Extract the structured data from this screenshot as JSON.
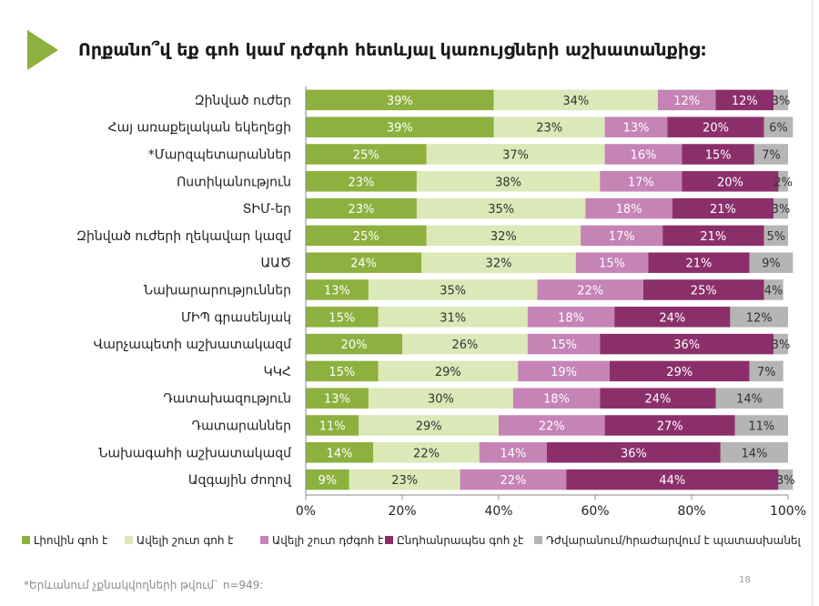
{
  "title": "Որքանո՞վ եք գոհ կամ դժգոհ հետևյալ կառույցների աշխատանքից:",
  "footnote": "*Երևանում չքնակվողների թվում` n=949:",
  "page_number": "18",
  "colors": [
    "#8db03f",
    "#dbe8b7",
    "#c583b6",
    "#8b2f6a",
    "#b5b5b5"
  ],
  "chart_data": {
    "type": "bar",
    "orientation": "horizontal",
    "stacked": true,
    "categories": [
      "Զինված ուժեր",
      "Հայ առաքելական եկեղեցի",
      "*Մարզպետարաններ",
      "Ոստիկանություն",
      "ՏԻՄ-եր",
      "Զինված ուժերի ղեկավար կազմ",
      "ԱԱԾ",
      "Նախարարություններ",
      "ՄԻՊ գրասենյակ",
      "Վարչապետի աշխատակազմ",
      "ԿԿՀ",
      "Դատախազություն",
      "Դատարաններ",
      "Նախագահի աշխատակազմ",
      "Ազգային ժողով"
    ],
    "series": [
      {
        "name": "Լիովին գոհ է",
        "values": [
          39,
          39,
          25,
          23,
          23,
          25,
          24,
          13,
          15,
          20,
          15,
          13,
          11,
          14,
          9
        ]
      },
      {
        "name": "Ավելի շուտ գոհ է",
        "values": [
          34,
          23,
          37,
          38,
          35,
          32,
          32,
          35,
          31,
          26,
          29,
          30,
          29,
          22,
          23
        ]
      },
      {
        "name": "Ավելի շուտ դժգոհ է",
        "values": [
          12,
          13,
          16,
          17,
          18,
          17,
          15,
          22,
          18,
          15,
          19,
          18,
          22,
          14,
          22
        ]
      },
      {
        "name": "Ընդհանրապես գոհ չէ",
        "values": [
          12,
          20,
          15,
          20,
          21,
          21,
          21,
          25,
          24,
          36,
          29,
          24,
          27,
          36,
          44
        ]
      },
      {
        "name": "Դժվարանում/հրաժարվում է պատասխանել",
        "values": [
          3,
          6,
          7,
          2,
          3,
          5,
          9,
          4,
          12,
          3,
          7,
          14,
          11,
          14,
          3
        ]
      }
    ],
    "xlim": [
      0,
      100
    ],
    "x_ticks": [
      "0%",
      "20%",
      "40%",
      "60%",
      "80%",
      "100%"
    ],
    "value_suffix": "%",
    "legend_position": "bottom",
    "grid": false
  }
}
